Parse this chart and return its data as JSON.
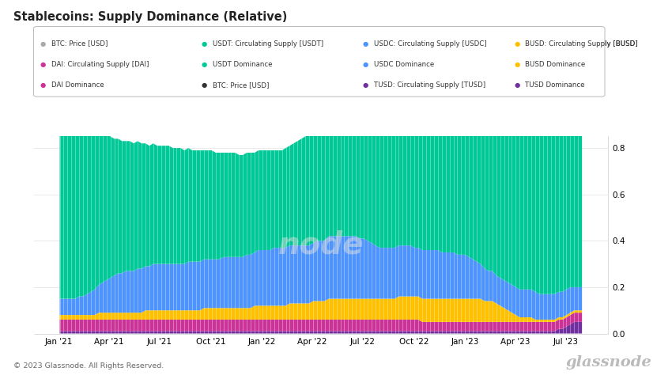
{
  "title": "Stablecoins: Supply Dominance (Relative)",
  "ylim": [
    0,
    0.85
  ],
  "yticks": [
    0,
    0.2,
    0.4,
    0.6,
    0.8
  ],
  "source": "© 2023 Glassnode. All Rights Reserved.",
  "watermark": "glassnode",
  "colors": {
    "USDT": "#00c896",
    "USDC": "#4d94ff",
    "BUSD": "#ffc000",
    "DAI": "#cc3399",
    "TUSD": "#7030a0"
  },
  "n_points": 135,
  "USDT_dom": [
    0.74,
    0.76,
    0.76,
    0.77,
    0.78,
    0.77,
    0.76,
    0.74,
    0.71,
    0.69,
    0.67,
    0.65,
    0.63,
    0.61,
    0.59,
    0.58,
    0.57,
    0.56,
    0.56,
    0.55,
    0.55,
    0.54,
    0.53,
    0.52,
    0.52,
    0.51,
    0.51,
    0.51,
    0.51,
    0.5,
    0.5,
    0.5,
    0.49,
    0.49,
    0.48,
    0.48,
    0.48,
    0.47,
    0.47,
    0.47,
    0.46,
    0.46,
    0.45,
    0.45,
    0.45,
    0.45,
    0.44,
    0.44,
    0.44,
    0.44,
    0.43,
    0.43,
    0.43,
    0.43,
    0.43,
    0.42,
    0.42,
    0.42,
    0.43,
    0.43,
    0.44,
    0.45,
    0.46,
    0.47,
    0.48,
    0.48,
    0.47,
    0.47,
    0.47,
    0.46,
    0.46,
    0.46,
    0.46,
    0.45,
    0.45,
    0.45,
    0.46,
    0.47,
    0.48,
    0.49,
    0.5,
    0.51,
    0.52,
    0.53,
    0.54,
    0.55,
    0.55,
    0.56,
    0.57,
    0.58,
    0.58,
    0.59,
    0.6,
    0.61,
    0.62,
    0.62,
    0.63,
    0.64,
    0.64,
    0.64,
    0.64,
    0.63,
    0.63,
    0.62,
    0.62,
    0.62,
    0.63,
    0.64,
    0.65,
    0.66,
    0.67,
    0.68,
    0.68,
    0.68,
    0.67,
    0.67,
    0.67,
    0.67,
    0.68,
    0.68,
    0.69,
    0.7,
    0.71,
    0.72,
    0.73,
    0.74,
    0.74,
    0.74,
    0.73,
    0.72,
    0.71,
    0.7,
    0.7,
    0.7,
    0.71
  ],
  "USDC_dom": [
    0.07,
    0.07,
    0.07,
    0.07,
    0.07,
    0.08,
    0.08,
    0.09,
    0.1,
    0.11,
    0.12,
    0.13,
    0.14,
    0.15,
    0.16,
    0.17,
    0.17,
    0.18,
    0.18,
    0.18,
    0.19,
    0.19,
    0.19,
    0.19,
    0.2,
    0.2,
    0.2,
    0.2,
    0.2,
    0.2,
    0.2,
    0.2,
    0.2,
    0.21,
    0.21,
    0.21,
    0.21,
    0.21,
    0.21,
    0.21,
    0.21,
    0.21,
    0.22,
    0.22,
    0.22,
    0.22,
    0.22,
    0.22,
    0.23,
    0.23,
    0.23,
    0.24,
    0.24,
    0.24,
    0.24,
    0.25,
    0.25,
    0.25,
    0.25,
    0.25,
    0.25,
    0.25,
    0.25,
    0.25,
    0.25,
    0.25,
    0.26,
    0.26,
    0.26,
    0.27,
    0.27,
    0.27,
    0.27,
    0.27,
    0.27,
    0.27,
    0.27,
    0.26,
    0.26,
    0.25,
    0.24,
    0.23,
    0.22,
    0.22,
    0.22,
    0.22,
    0.22,
    0.22,
    0.22,
    0.22,
    0.22,
    0.21,
    0.21,
    0.21,
    0.21,
    0.21,
    0.21,
    0.21,
    0.2,
    0.2,
    0.2,
    0.2,
    0.19,
    0.19,
    0.19,
    0.18,
    0.17,
    0.16,
    0.15,
    0.14,
    0.13,
    0.13,
    0.12,
    0.12,
    0.12,
    0.12,
    0.12,
    0.12,
    0.12,
    0.12,
    0.12,
    0.12,
    0.12,
    0.11,
    0.11,
    0.11,
    0.11,
    0.11,
    0.11,
    0.11,
    0.11,
    0.11,
    0.1,
    0.1,
    0.1
  ],
  "BUSD_dom": [
    0.02,
    0.02,
    0.02,
    0.02,
    0.02,
    0.02,
    0.02,
    0.02,
    0.02,
    0.02,
    0.03,
    0.03,
    0.03,
    0.03,
    0.03,
    0.03,
    0.03,
    0.03,
    0.03,
    0.03,
    0.03,
    0.03,
    0.04,
    0.04,
    0.04,
    0.04,
    0.04,
    0.04,
    0.04,
    0.04,
    0.04,
    0.04,
    0.04,
    0.04,
    0.04,
    0.04,
    0.04,
    0.05,
    0.05,
    0.05,
    0.05,
    0.05,
    0.05,
    0.05,
    0.05,
    0.05,
    0.05,
    0.05,
    0.05,
    0.05,
    0.06,
    0.06,
    0.06,
    0.06,
    0.06,
    0.06,
    0.06,
    0.06,
    0.06,
    0.07,
    0.07,
    0.07,
    0.07,
    0.07,
    0.07,
    0.08,
    0.08,
    0.08,
    0.08,
    0.09,
    0.09,
    0.09,
    0.09,
    0.09,
    0.09,
    0.09,
    0.09,
    0.09,
    0.09,
    0.09,
    0.09,
    0.09,
    0.09,
    0.09,
    0.09,
    0.09,
    0.09,
    0.1,
    0.1,
    0.1,
    0.1,
    0.1,
    0.1,
    0.1,
    0.1,
    0.1,
    0.1,
    0.1,
    0.1,
    0.1,
    0.1,
    0.1,
    0.1,
    0.1,
    0.1,
    0.1,
    0.1,
    0.1,
    0.1,
    0.09,
    0.09,
    0.09,
    0.08,
    0.07,
    0.06,
    0.05,
    0.04,
    0.03,
    0.02,
    0.02,
    0.02,
    0.02,
    0.01,
    0.01,
    0.01,
    0.01,
    0.01,
    0.01,
    0.01,
    0.01,
    0.01,
    0.01,
    0.01,
    0.01,
    0.01
  ],
  "DAI_dom": [
    0.05,
    0.05,
    0.05,
    0.05,
    0.05,
    0.05,
    0.05,
    0.05,
    0.05,
    0.05,
    0.05,
    0.05,
    0.05,
    0.05,
    0.05,
    0.05,
    0.05,
    0.05,
    0.05,
    0.05,
    0.05,
    0.05,
    0.05,
    0.05,
    0.05,
    0.05,
    0.05,
    0.05,
    0.05,
    0.05,
    0.05,
    0.05,
    0.05,
    0.05,
    0.05,
    0.05,
    0.05,
    0.05,
    0.05,
    0.05,
    0.05,
    0.05,
    0.05,
    0.05,
    0.05,
    0.05,
    0.05,
    0.05,
    0.05,
    0.05,
    0.05,
    0.05,
    0.05,
    0.05,
    0.05,
    0.05,
    0.05,
    0.05,
    0.05,
    0.05,
    0.05,
    0.05,
    0.05,
    0.05,
    0.05,
    0.05,
    0.05,
    0.05,
    0.05,
    0.05,
    0.05,
    0.05,
    0.05,
    0.05,
    0.05,
    0.05,
    0.05,
    0.05,
    0.05,
    0.05,
    0.05,
    0.05,
    0.05,
    0.05,
    0.05,
    0.05,
    0.05,
    0.05,
    0.05,
    0.05,
    0.05,
    0.05,
    0.05,
    0.04,
    0.04,
    0.04,
    0.04,
    0.04,
    0.04,
    0.04,
    0.04,
    0.04,
    0.04,
    0.04,
    0.04,
    0.04,
    0.04,
    0.04,
    0.04,
    0.04,
    0.04,
    0.04,
    0.04,
    0.04,
    0.04,
    0.04,
    0.04,
    0.04,
    0.04,
    0.04,
    0.04,
    0.04,
    0.04,
    0.04,
    0.04,
    0.04,
    0.04,
    0.04,
    0.04,
    0.04,
    0.04,
    0.04,
    0.04,
    0.04,
    0.04
  ],
  "TUSD_dom": [
    0.01,
    0.01,
    0.01,
    0.01,
    0.01,
    0.01,
    0.01,
    0.01,
    0.01,
    0.01,
    0.01,
    0.01,
    0.01,
    0.01,
    0.01,
    0.01,
    0.01,
    0.01,
    0.01,
    0.01,
    0.01,
    0.01,
    0.01,
    0.01,
    0.01,
    0.01,
    0.01,
    0.01,
    0.01,
    0.01,
    0.01,
    0.01,
    0.01,
    0.01,
    0.01,
    0.01,
    0.01,
    0.01,
    0.01,
    0.01,
    0.01,
    0.01,
    0.01,
    0.01,
    0.01,
    0.01,
    0.01,
    0.01,
    0.01,
    0.01,
    0.01,
    0.01,
    0.01,
    0.01,
    0.01,
    0.01,
    0.01,
    0.01,
    0.01,
    0.01,
    0.01,
    0.01,
    0.01,
    0.01,
    0.01,
    0.01,
    0.01,
    0.01,
    0.01,
    0.01,
    0.01,
    0.01,
    0.01,
    0.01,
    0.01,
    0.01,
    0.01,
    0.01,
    0.01,
    0.01,
    0.01,
    0.01,
    0.01,
    0.01,
    0.01,
    0.01,
    0.01,
    0.01,
    0.01,
    0.01,
    0.01,
    0.01,
    0.01,
    0.01,
    0.01,
    0.01,
    0.01,
    0.01,
    0.01,
    0.01,
    0.01,
    0.01,
    0.01,
    0.01,
    0.01,
    0.01,
    0.01,
    0.01,
    0.01,
    0.01,
    0.01,
    0.01,
    0.01,
    0.01,
    0.01,
    0.01,
    0.01,
    0.01,
    0.01,
    0.01,
    0.01,
    0.01,
    0.01,
    0.01,
    0.01,
    0.01,
    0.01,
    0.01,
    0.02,
    0.02,
    0.03,
    0.04,
    0.05,
    0.05,
    0.05
  ],
  "legend_rows": [
    [
      {
        "label": "BTC: Price [USD]",
        "color": "#aaaaaa"
      },
      {
        "label": "USDT: Circulating Supply [USDT]",
        "color": "#00c896"
      },
      {
        "label": "USDC: Circulating Supply [USDC]",
        "color": "#4d94ff"
      },
      {
        "label": "BUSD: Circulating Supply [BUSD]",
        "color": "#ffc000"
      }
    ],
    [
      {
        "label": "DAI: Circulating Supply [DAI]",
        "color": "#cc3399"
      },
      {
        "label": "USDT Dominance",
        "color": "#00c896"
      },
      {
        "label": "USDC Dominance",
        "color": "#4d94ff"
      },
      {
        "label": "BUSD Dominance",
        "color": "#ffc000"
      }
    ],
    [
      {
        "label": "DAI Dominance",
        "color": "#cc3399"
      },
      {
        "label": "BTC: Price [USD]",
        "color": "#333333"
      },
      {
        "label": "TUSD: Circulating Supply [TUSD]",
        "color": "#7030a0"
      },
      {
        "label": "TUSD Dominance",
        "color": "#7030a0"
      }
    ]
  ]
}
